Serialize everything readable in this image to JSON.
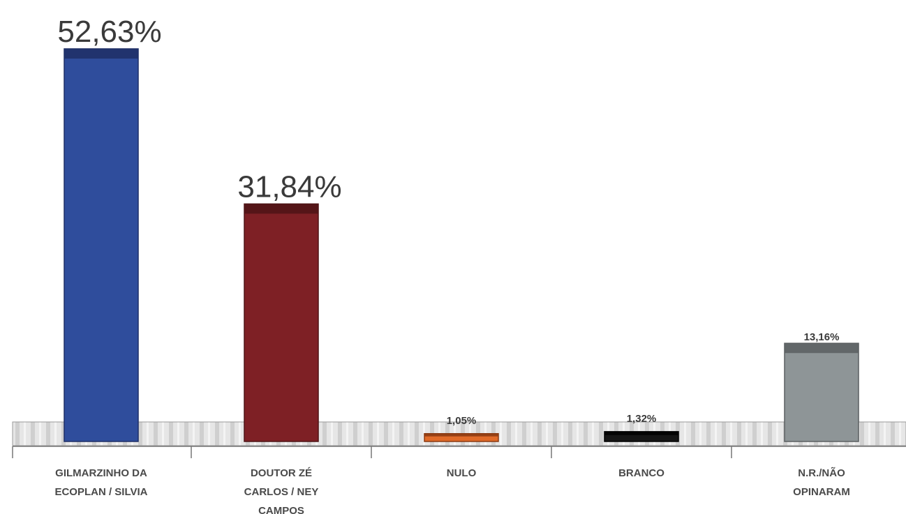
{
  "chart_data": {
    "type": "bar",
    "categories": [
      [
        "GILMARZINHO DA",
        "ECOPLAN / SILVIA"
      ],
      [
        "DOUTOR ZÉ",
        "CARLOS / NEY",
        "CAMPOS"
      ],
      [
        "NULO"
      ],
      [
        "BRANCO"
      ],
      [
        "N.R./NÃO",
        "OPINARAM"
      ]
    ],
    "values": [
      52.63,
      31.84,
      1.05,
      1.32,
      13.16
    ],
    "value_labels": [
      "52,63%",
      "31,84%",
      "1,05%",
      "1,32%",
      "13,16%"
    ],
    "colors": [
      "#2f4d9c",
      "#7e2025",
      "#e06a28",
      "#151515",
      "#8e9597"
    ],
    "cap_colors": [
      "#1e2f66",
      "#4e1416",
      "#8a3a12",
      "#000000",
      "#5a5f60"
    ],
    "ylim": [
      0,
      55
    ],
    "grid": false,
    "legend": "none",
    "title": "",
    "xlabel": "",
    "ylabel": ""
  }
}
